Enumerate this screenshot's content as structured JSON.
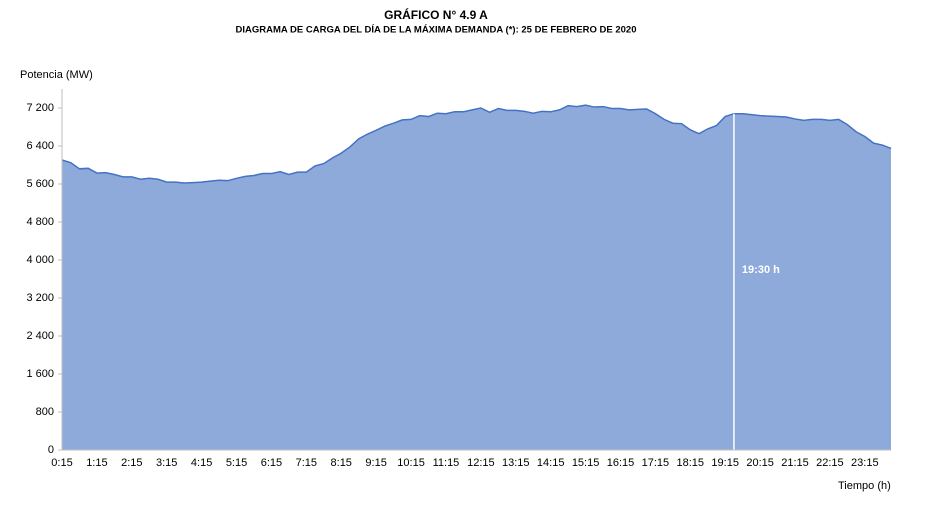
{
  "chart_data": {
    "type": "area",
    "title": "GRÁFICO N° 4.9 A",
    "subtitle": "DIAGRAMA  DE CARGA  DEL DÍA DE LA MÁXIMA  DEMANDA  (*): 25 DE FEBRERO DE 2020",
    "y_label": "Potencia (MW)",
    "x_label": "Tiempo  (h)",
    "annotation": "19:30 h",
    "color": "#8eaadb",
    "line_color": "#4472c4",
    "ylim": [
      0,
      7600
    ],
    "yticks": [
      0,
      800,
      {
        "value": 1600,
        "label": "1 600"
      },
      {
        "value": 2400,
        "label": "2 400"
      },
      {
        "value": 3200,
        "label": "3 200"
      },
      {
        "value": 4000,
        "label": "4 000"
      },
      {
        "value": 4800,
        "label": "4 800"
      },
      {
        "value": 5600,
        "label": "5 600"
      },
      {
        "value": 6400,
        "label": "6 400"
      },
      {
        "value": 7200,
        "label": "7 200"
      }
    ],
    "grid": false,
    "categories": [
      "0:15",
      null,
      null,
      null,
      "1:15",
      null,
      null,
      null,
      "2:15",
      null,
      null,
      null,
      "3:15",
      null,
      null,
      null,
      "4:15",
      null,
      null,
      null,
      "5:15",
      null,
      null,
      null,
      "6:15",
      null,
      null,
      null,
      "7:15",
      null,
      null,
      null,
      "8:15",
      null,
      null,
      null,
      "9:15",
      null,
      null,
      null,
      "10:15",
      null,
      null,
      null,
      "11:15",
      null,
      null,
      null,
      "12:15",
      null,
      null,
      null,
      "13:15",
      null,
      null,
      null,
      "14:15",
      null,
      null,
      null,
      "15:15",
      null,
      null,
      null,
      "16:15",
      null,
      null,
      null,
      "17:15",
      null,
      null,
      null,
      "18:15",
      null,
      null,
      null,
      "19:15",
      null,
      null,
      null,
      "20:15",
      null,
      null,
      null,
      "21:15",
      null,
      null,
      null,
      "22:15",
      null,
      null,
      null,
      "23:15",
      null,
      null,
      null
    ],
    "values": [
      6105,
      6050,
      5920,
      5930,
      5830,
      5840,
      5800,
      5750,
      5750,
      5700,
      5720,
      5700,
      5640,
      5640,
      5620,
      5630,
      5640,
      5660,
      5680,
      5670,
      5720,
      5760,
      5780,
      5820,
      5820,
      5860,
      5800,
      5850,
      5850,
      5980,
      6030,
      6150,
      6250,
      6380,
      6550,
      6650,
      6730,
      6820,
      6880,
      6950,
      6960,
      7040,
      7020,
      7090,
      7080,
      7120,
      7120,
      7160,
      7200,
      7110,
      7190,
      7150,
      7150,
      7130,
      7090,
      7130,
      7120,
      7160,
      7250,
      7230,
      7260,
      7220,
      7230,
      7190,
      7190,
      7160,
      7170,
      7180,
      7080,
      6960,
      6880,
      6870,
      6740,
      6660,
      6760,
      6830,
      7020,
      7080,
      7080,
      7060,
      7040,
      7030,
      7020,
      7010,
      6970,
      6940,
      6960,
      6960,
      6940,
      6960,
      6850,
      6700,
      6600,
      6460,
      6420,
      6350
    ]
  }
}
